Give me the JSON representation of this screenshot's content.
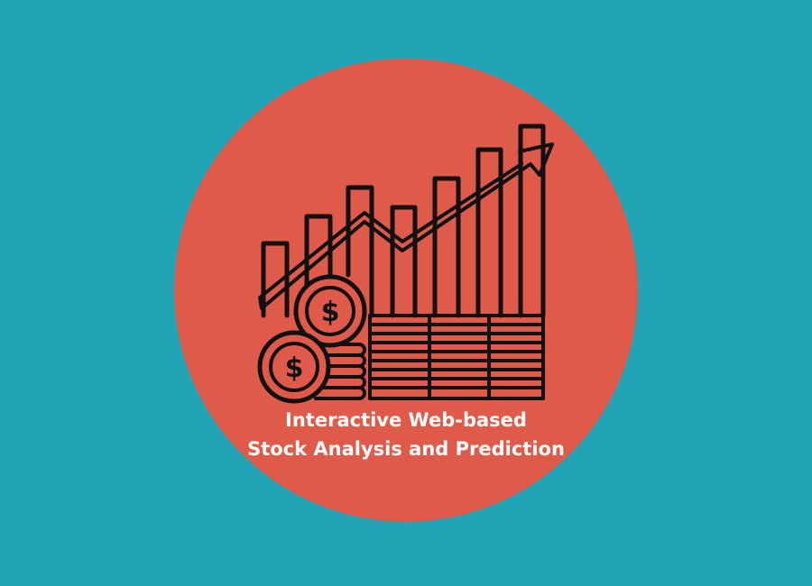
{
  "colors": {
    "background": "#1fa3b5",
    "circle": "#e05a4a",
    "ink": "#111111",
    "text": "#ffffff"
  },
  "icon": {
    "name": "stock-growth-chart-with-coins-icon"
  },
  "caption": {
    "line1": "Interactive Web-based",
    "line2": "Stock Analysis and Prediction"
  }
}
